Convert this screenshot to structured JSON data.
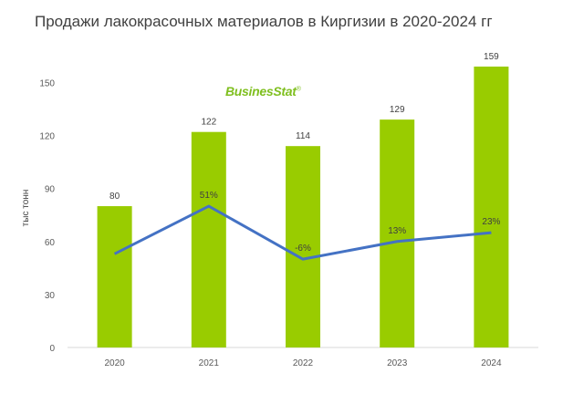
{
  "page": {
    "title": "Продажи лакокрасочных материалов в Киргизии в 2020-2024 гг",
    "logo": "BusinesStat",
    "logo_mark": "®"
  },
  "chart_data": {
    "type": "bar",
    "title": "Продажи лакокрасочных материалов в Киргизии в 2020-2024 гг",
    "ylabel": "тыс тонн",
    "xlabel": "",
    "categories": [
      "2020",
      "2021",
      "2022",
      "2023",
      "2024"
    ],
    "values": [
      80,
      122,
      114,
      129,
      159
    ],
    "value_labels": [
      "80",
      "122",
      "114",
      "129",
      "159"
    ],
    "ylim": [
      0,
      165
    ],
    "yticks": [
      0,
      30,
      60,
      90,
      120,
      150
    ],
    "bar_color": "#99cc00",
    "growth": {
      "type": "line",
      "color": "#4472c4",
      "values": [
        53,
        80,
        50,
        60,
        65
      ],
      "labels": [
        "",
        "51%",
        "-6%",
        "13%",
        "23%"
      ]
    },
    "grid": false,
    "legend": "none"
  }
}
